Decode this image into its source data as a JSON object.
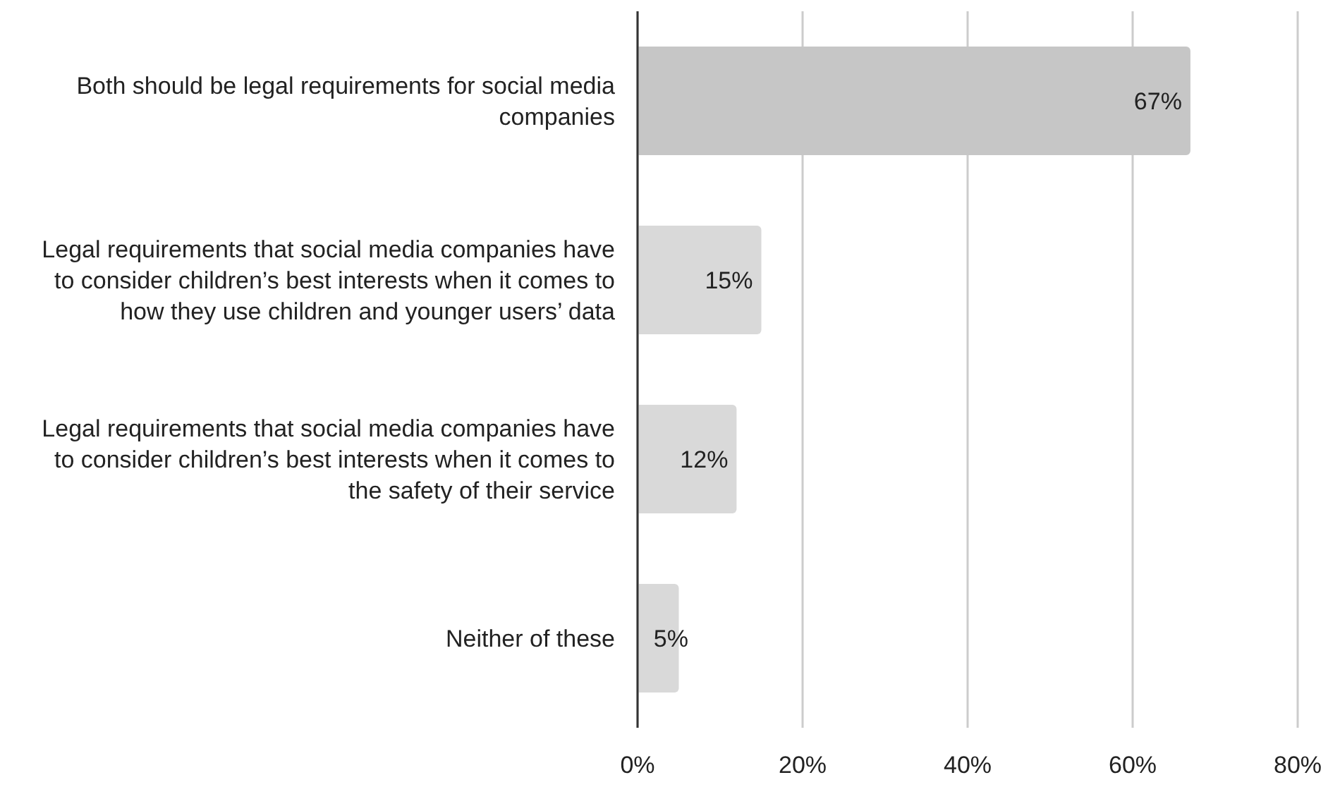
{
  "chart_data": {
    "type": "bar",
    "orientation": "horizontal",
    "categories": [
      "Both should be legal requirements for social media companies",
      "Legal requirements that social media companies have to consider children’s best interests when it comes to how they use children and younger users’ data",
      "Legal requirements that social media companies have to consider children’s best interests when it comes to the safety of their service",
      "Neither of these"
    ],
    "values": [
      67,
      15,
      12,
      5
    ],
    "colors": [
      "#c6c6c6",
      "#d9d9d9",
      "#d9d9d9",
      "#d9d9d9"
    ],
    "value_labels": [
      "67%",
      "15%",
      "12%",
      "5%"
    ],
    "xlim": [
      0,
      80
    ],
    "xticks": [
      {
        "value": 0,
        "label": "0%"
      },
      {
        "value": 20,
        "label": "20%"
      },
      {
        "value": 40,
        "label": "40%"
      },
      {
        "value": 60,
        "label": "60%"
      },
      {
        "value": 80,
        "label": "80%"
      }
    ],
    "grid": "x"
  }
}
